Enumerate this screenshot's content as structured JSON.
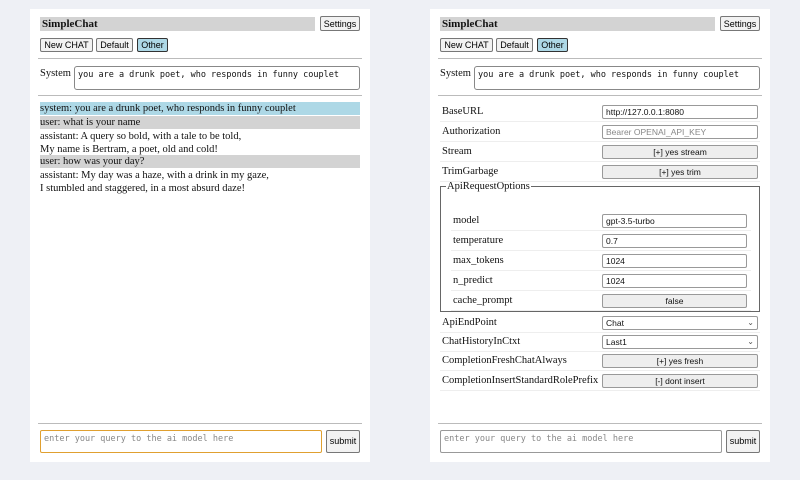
{
  "app": {
    "title": "SimpleChat",
    "settings_label": "Settings",
    "buttons": [
      "New CHAT",
      "Default",
      "Other"
    ],
    "selected_button": "Other"
  },
  "system": {
    "label": "System",
    "value": "you are a drunk poet, who responds in funny couplet"
  },
  "chat": [
    {
      "role": "system",
      "lines": [
        "system: you are a drunk poet, who responds in funny couplet"
      ]
    },
    {
      "role": "user",
      "lines": [
        "user: what is your name"
      ]
    },
    {
      "role": "assistant",
      "lines": [
        "assistant: A query so bold, with a tale to be told,",
        "My name is Bertram, a poet, old and cold!"
      ]
    },
    {
      "role": "user",
      "lines": [
        "user: how was your day?"
      ]
    },
    {
      "role": "assistant",
      "lines": [
        "assistant: My day was a haze, with a drink in my gaze,",
        "I stumbled and staggered, in a most absurd daze!"
      ]
    }
  ],
  "query": {
    "placeholder": "enter your query to the ai model here",
    "submit_label": "submit"
  },
  "settings": {
    "base_url": {
      "label": "BaseURL",
      "value": "http://127.0.0.1:8080"
    },
    "authorization": {
      "label": "Authorization",
      "placeholder": "Bearer OPENAI_API_KEY"
    },
    "stream": {
      "label": "Stream",
      "value": "[+] yes stream"
    },
    "trim": {
      "label": "TrimGarbage",
      "value": "[+] yes trim"
    },
    "api_options": {
      "legend": "ApiRequestOptions",
      "model": {
        "label": "model",
        "value": "gpt-3.5-turbo"
      },
      "temperature": {
        "label": "temperature",
        "value": "0.7"
      },
      "max_tokens": {
        "label": "max_tokens",
        "value": "1024"
      },
      "n_predict": {
        "label": "n_predict",
        "value": "1024"
      },
      "cache_prompt": {
        "label": "cache_prompt",
        "value": "false"
      }
    },
    "api_endpoint": {
      "label": "ApiEndPoint",
      "value": "Chat"
    },
    "chat_history": {
      "label": "ChatHistoryInCtxt",
      "value": "Last1"
    },
    "fresh": {
      "label": "CompletionFreshChatAlways",
      "value": "[+] yes fresh"
    },
    "insert": {
      "label": "CompletionInsertStandardRolePrefix",
      "value": "[-] dont insert"
    }
  },
  "colors": {
    "system_msg": "#add8e6",
    "user_msg": "#d3d3d3",
    "focus": "#e0a030",
    "background": "#eef0f5"
  }
}
